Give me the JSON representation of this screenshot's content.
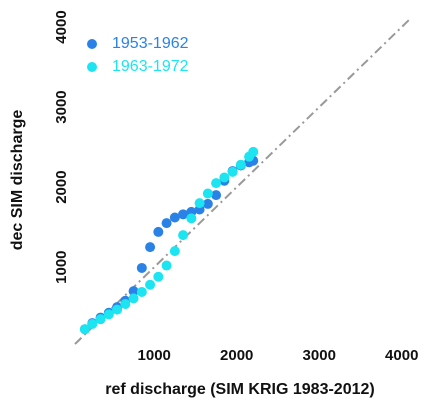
{
  "chart_data": {
    "type": "scatter",
    "x_label": "ref discharge (SIM KRIG 1983-2012)",
    "y_label": "dec SIM discharge",
    "xlim": [
      40,
      4100
    ],
    "ylim": [
      40,
      4150
    ],
    "xticks": [
      1000,
      2000,
      3000,
      4000
    ],
    "yticks": [
      1000,
      2000,
      3000,
      4000
    ],
    "legend": "top-left",
    "series": [
      {
        "name": "1953-1962",
        "color": "#2a82e6",
        "x": [
          160,
          250,
          350,
          450,
          550,
          650,
          750,
          850,
          950,
          1050,
          1150,
          1250,
          1350,
          1450,
          1550,
          1650,
          1750,
          1850,
          1950,
          2050,
          2150,
          2200
        ],
        "values": [
          225,
          300,
          370,
          430,
          500,
          580,
          700,
          990,
          1250,
          1440,
          1550,
          1620,
          1660,
          1690,
          1720,
          1790,
          1900,
          2080,
          2200,
          2270,
          2310,
          2330
        ]
      },
      {
        "name": "1963-1972",
        "color": "#1ce4f0",
        "x": [
          160,
          250,
          350,
          450,
          550,
          650,
          750,
          850,
          950,
          1050,
          1150,
          1250,
          1350,
          1450,
          1550,
          1650,
          1750,
          1850,
          1950,
          2050,
          2150,
          2200
        ],
        "values": [
          225,
          290,
          350,
          410,
          470,
          540,
          610,
          690,
          780,
          880,
          1020,
          1200,
          1400,
          1610,
          1800,
          1920,
          2050,
          2120,
          2190,
          2280,
          2380,
          2440
        ]
      }
    ]
  }
}
